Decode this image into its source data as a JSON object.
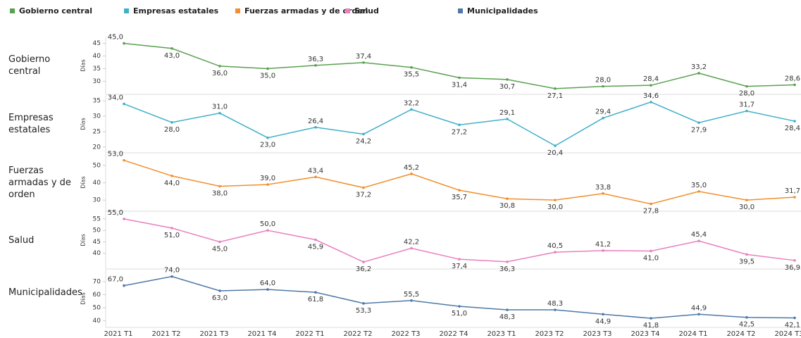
{
  "chart_data": [
    {
      "type": "line",
      "y_label": "Días",
      "ylim": [
        26.5,
        46
      ],
      "yticks": [
        30,
        35,
        40,
        45
      ],
      "series": [
        {
          "name": "Gobierno central",
          "color": "#59a14f",
          "values": [
            45,
            43,
            36,
            35,
            36.3,
            37.4,
            35.5,
            31.4,
            30.7,
            27.1,
            28,
            28.4,
            33.2,
            28,
            28.6
          ],
          "value_labels": [
            "45,0",
            "43,0",
            "36,0",
            "35,0",
            "36,3",
            "37,4",
            "35,5",
            "31,4",
            "30,7",
            "27,1",
            "28,0",
            "28,4",
            "33,2",
            "28,0",
            "28,6"
          ]
        }
      ]
    },
    {
      "type": "line",
      "y_label": "Días",
      "ylim": [
        19.5,
        35.5
      ],
      "yticks": [
        20,
        25,
        30,
        35
      ],
      "series": [
        {
          "name": "Empresas estatales",
          "color": "#3fb0c9",
          "values": [
            34,
            28,
            31,
            23,
            26.4,
            24.2,
            32.2,
            27.2,
            29.1,
            20.4,
            29.4,
            34.6,
            27.9,
            31.7,
            28.4
          ],
          "value_labels": [
            "34,0",
            "28,0",
            "31,0",
            "23,0",
            "26,4",
            "24,2",
            "32,2",
            "27,2",
            "29,1",
            "20,4",
            "29,4",
            "34,6",
            "27,9",
            "31,7",
            "28,4"
          ]
        }
      ]
    },
    {
      "type": "line",
      "y_label": "Días",
      "ylim": [
        26,
        54.5
      ],
      "yticks": [
        30,
        40,
        50
      ],
      "series": [
        {
          "name": "Fuerzas armadas y de orden",
          "color": "#f28e2b",
          "values": [
            53,
            44,
            38,
            39,
            43.4,
            37.2,
            45.2,
            35.7,
            30.8,
            30,
            33.8,
            27.8,
            35,
            30,
            31.7
          ],
          "value_labels": [
            "53,0",
            "44,0",
            "38,0",
            "39,0",
            "43,4",
            "37,2",
            "45,2",
            "35,7",
            "30,8",
            "30,0",
            "33,8",
            "27,8",
            "35,0",
            "30,0",
            "31,7"
          ]
        }
      ]
    },
    {
      "type": "line",
      "y_label": "Días",
      "ylim": [
        35,
        56.5
      ],
      "yticks": [
        40,
        45,
        50,
        55
      ],
      "series": [
        {
          "name": "Salud",
          "color": "#e97fbf",
          "values": [
            55,
            51,
            45,
            50,
            45.9,
            36.2,
            42.2,
            37.4,
            36.3,
            40.5,
            41.2,
            41,
            45.4,
            39.5,
            36.9
          ],
          "value_labels": [
            "55,0",
            "51,0",
            "45,0",
            "50,0",
            "45,9",
            "36,2",
            "42,2",
            "37,4",
            "36,3",
            "40,5",
            "41,2",
            "41,0",
            "45,4",
            "39,5",
            "36,9"
          ]
        }
      ]
    },
    {
      "type": "line",
      "y_label": "Días",
      "ylim": [
        38,
        76
      ],
      "yticks": [
        40,
        50,
        60,
        70
      ],
      "categories": [
        "2021 T1",
        "2021 T2",
        "2021 T3",
        "2021 T4",
        "2022 T1",
        "2022 T2",
        "2022 T3",
        "2022 T4",
        "2023 T1",
        "2023 T2",
        "2023 T3",
        "2023 T4",
        "2024 T1",
        "2024 T2",
        "2024 T3"
      ],
      "series": [
        {
          "name": "Municipalidades",
          "color": "#4e79a7",
          "values": [
            67,
            74,
            63,
            64,
            61.8,
            53.3,
            55.5,
            51,
            48.3,
            48.3,
            44.9,
            41.8,
            44.9,
            42.5,
            42.1
          ],
          "value_labels": [
            "67,0",
            "74,0",
            "63,0",
            "64,0",
            "61,8",
            "53,3",
            "55,5",
            "51,0",
            "48,3",
            "48,3",
            "44,9",
            "41,8",
            "44,9",
            "42,5",
            "42,1"
          ]
        }
      ]
    }
  ]
}
